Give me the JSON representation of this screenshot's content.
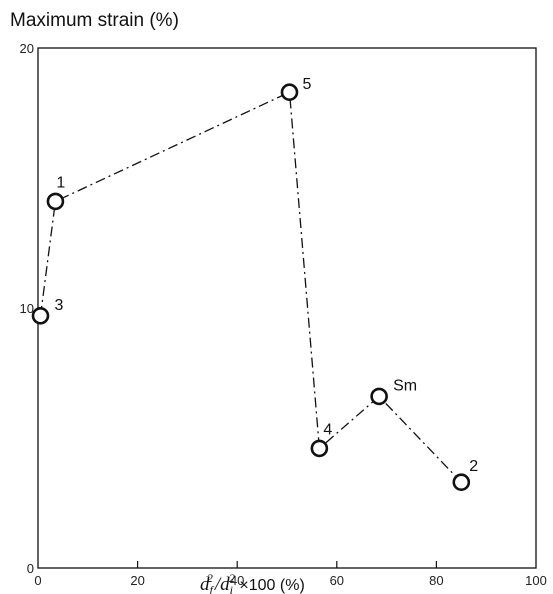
{
  "chart_data": {
    "type": "scatter",
    "ylabel": "Maximum strain (%)",
    "xlabel": {
      "main_var": "d",
      "sub_f": "f",
      "sup_f": "2",
      "sep": "/",
      "sub_i": "i",
      "sup_i": "2",
      "tail": " ×100 (%)"
    },
    "xlim": [
      0,
      100
    ],
    "ylim": [
      0,
      20
    ],
    "x_ticks": [
      0,
      20,
      40,
      60,
      80,
      100
    ],
    "y_ticks": [
      0,
      10,
      20
    ],
    "grid": false,
    "line_style": "dash-dot",
    "points": [
      {
        "label": "3",
        "x": 0.5,
        "y": 9.7
      },
      {
        "label": "1",
        "x": 3.5,
        "y": 14.1
      },
      {
        "label": "5",
        "x": 50.5,
        "y": 18.3
      },
      {
        "label": "4",
        "x": 56.5,
        "y": 4.6
      },
      {
        "label": "Sm",
        "x": 68.5,
        "y": 6.6
      },
      {
        "label": "2",
        "x": 85.0,
        "y": 3.3
      }
    ]
  }
}
